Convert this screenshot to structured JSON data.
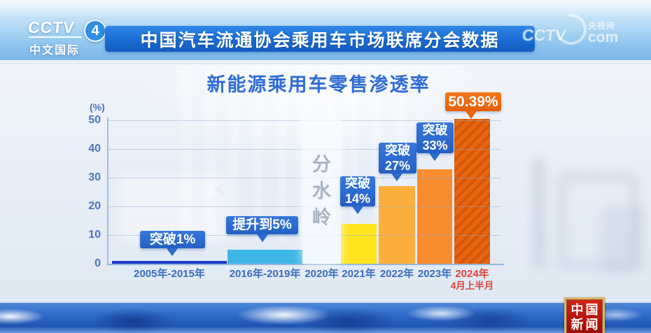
{
  "channel_bug": {
    "brand": "CCTV",
    "channel_number": "4",
    "subtitle": "中文国际"
  },
  "header_banner": {
    "title": "中国汽车流通协会乘用车市场联席分会数据"
  },
  "watermark": {
    "brand": "CCTV",
    "site_name": "央视网",
    "site_domain": "com"
  },
  "corner_badge": {
    "line1": "中国",
    "line2": "新闻"
  },
  "chart_data": {
    "type": "bar",
    "title": "新能源乘用车零售渗透率",
    "ylabel": "(%)",
    "ylim": [
      0,
      55
    ],
    "yticks": [
      0,
      10,
      20,
      30,
      40,
      50
    ],
    "grid": true,
    "legend": "none",
    "categories": [
      "2005年-2015年",
      "2016年-2019年",
      "2020年",
      "2021年",
      "2022年",
      "2023年",
      "2024年4月上半月"
    ],
    "values": [
      1,
      5,
      null,
      14,
      27,
      33,
      50.39
    ],
    "bars": [
      {
        "value": 1,
        "color": "#1c38cc",
        "annotation_lines": [
          "突破1%"
        ],
        "annotation_style": "blue",
        "tick_lines": [
          "2005年-2015年"
        ],
        "tick_highlight": false
      },
      {
        "value": 5,
        "color": "#3fb6e8",
        "annotation_lines": [
          "提升到5%"
        ],
        "annotation_style": "blue",
        "tick_lines": [
          "2016年-2019年"
        ],
        "tick_highlight": false
      },
      {
        "value": null,
        "color": "rgba(250,252,255,0.72)",
        "annotation_lines": [
          "分水岭"
        ],
        "annotation_style": "watershed",
        "tick_lines": [
          "2020年"
        ],
        "tick_highlight": false
      },
      {
        "value": 14,
        "color": "#ffe41e",
        "annotation_lines": [
          "突破",
          "14%"
        ],
        "annotation_style": "blue",
        "tick_lines": [
          "2021年"
        ],
        "tick_highlight": false
      },
      {
        "value": 27,
        "color": "#fcae3d",
        "annotation_lines": [
          "突破",
          "27%"
        ],
        "annotation_style": "blue",
        "tick_lines": [
          "2022年"
        ],
        "tick_highlight": false
      },
      {
        "value": 33,
        "color": "#f88c2f",
        "annotation_lines": [
          "突破",
          "33%"
        ],
        "annotation_style": "blue",
        "tick_lines": [
          "2023年"
        ],
        "tick_highlight": false
      },
      {
        "value": 50.39,
        "color": "#e8650e",
        "pattern": "diagonal-stripes",
        "annotation_lines": [
          "50.39%"
        ],
        "annotation_style": "orange",
        "tick_lines": [
          "2024年",
          "4月上半月"
        ],
        "tick_highlight": true
      }
    ],
    "colors": {
      "callout_blue": "#2d6ccf",
      "callout_orange": "#ec670d",
      "axis_text": "#4a74c0",
      "x_tick_text": "#3b6bc2",
      "x_tick_highlight": "#e04238",
      "title_text": "#2e6cd6",
      "watershed_text": "#a9b3c3"
    }
  }
}
